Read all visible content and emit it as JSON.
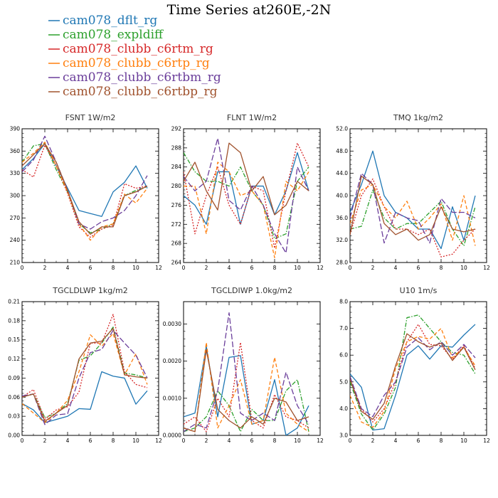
{
  "title": "Time Series at260E,-2N",
  "legend": [
    {
      "name": "cam078_dflt_rg",
      "color": "#1f77b4",
      "dash": "solid"
    },
    {
      "name": "cam078_expldiff",
      "color": "#2ca02c",
      "dash": "dashdot"
    },
    {
      "name": "cam078_clubb_c6rtm_rg",
      "color": "#d62728",
      "dash": "dot"
    },
    {
      "name": "cam078_clubb_c6rtp_rg",
      "color": "#ff7f0e",
      "dash": "dash"
    },
    {
      "name": "cam078_clubb_c6rtbm_rg",
      "color": "#6a3d9a",
      "dash": "longdash"
    },
    {
      "name": "cam078_clubb_c6rtbp_rg",
      "color": "#a0522d",
      "dash": "solid"
    }
  ],
  "chart_data": [
    {
      "type": "line",
      "title": "FSNT   1W/m2",
      "x": [
        0,
        1,
        2,
        3,
        4,
        5,
        6,
        7,
        8,
        9,
        10,
        11
      ],
      "xlim": [
        0,
        12
      ],
      "ylim": [
        210,
        390
      ],
      "yticks": [
        "210",
        "240",
        "270",
        "300",
        "330",
        "360",
        "390"
      ],
      "xticks": [
        "0",
        "2",
        "4",
        "6",
        "8",
        "10",
        "12"
      ],
      "series": [
        {
          "name": "cam078_dflt_rg",
          "values": [
            335,
            350,
            370,
            340,
            310,
            280,
            276,
            272,
            305,
            318,
            340,
            310
          ]
        },
        {
          "name": "cam078_expldiff",
          "values": [
            345,
            367,
            370,
            335,
            305,
            262,
            250,
            255,
            262,
            300,
            307,
            312
          ]
        },
        {
          "name": "cam078_clubb_c6rtm_rg",
          "values": [
            335,
            325,
            368,
            340,
            303,
            258,
            244,
            255,
            260,
            316,
            310,
            313
          ]
        },
        {
          "name": "cam078_clubb_c6rtp_rg",
          "values": [
            345,
            357,
            372,
            340,
            305,
            262,
            240,
            258,
            262,
            302,
            290,
            310
          ]
        },
        {
          "name": "cam078_clubb_c6rtbm_rg",
          "values": [
            332,
            348,
            380,
            345,
            308,
            262,
            255,
            265,
            270,
            280,
            300,
            327
          ]
        },
        {
          "name": "cam078_clubb_c6rtbp_rg",
          "values": [
            340,
            355,
            370,
            345,
            307,
            265,
            248,
            258,
            258,
            300,
            305,
            313
          ]
        }
      ]
    },
    {
      "type": "line",
      "title": "FLNT   1W/m2",
      "x": [
        0,
        1,
        2,
        3,
        4,
        5,
        6,
        7,
        8,
        9,
        10,
        11
      ],
      "xlim": [
        0,
        12
      ],
      "ylim": [
        264,
        292
      ],
      "yticks": [
        "264",
        "268",
        "272",
        "276",
        "280",
        "284",
        "288",
        "292"
      ],
      "xticks": [
        "0",
        "2",
        "4",
        "6",
        "8",
        "10",
        "12"
      ],
      "series": [
        {
          "name": "cam078_dflt_rg",
          "values": [
            278,
            276,
            272,
            283,
            283,
            272,
            280,
            280,
            274,
            279,
            287,
            279
          ]
        },
        {
          "name": "cam078_expldiff",
          "values": [
            287,
            283,
            281,
            281,
            280,
            284,
            279,
            276,
            269,
            270,
            281,
            284
          ]
        },
        {
          "name": "cam078_clubb_c6rtm_rg",
          "values": [
            283,
            270,
            278,
            284,
            276,
            272,
            280,
            279,
            267,
            279,
            289,
            284
          ]
        },
        {
          "name": "cam078_clubb_c6rtp_rg",
          "values": [
            280,
            280,
            270,
            285,
            283,
            278,
            279,
            276,
            265,
            281,
            279,
            283
          ]
        },
        {
          "name": "cam078_clubb_c6rtbm_rg",
          "values": [
            282,
            279,
            281,
            290,
            277,
            275,
            280,
            276,
            270,
            266,
            284,
            279
          ]
        },
        {
          "name": "cam078_clubb_c6rtbp_rg",
          "values": [
            281,
            285,
            279,
            275,
            289,
            287,
            279,
            282,
            274,
            276,
            281,
            279
          ]
        }
      ]
    },
    {
      "type": "line",
      "title": "TMQ   1kg/m2",
      "x": [
        0,
        1,
        2,
        3,
        4,
        5,
        6,
        7,
        8,
        9,
        10,
        11
      ],
      "xlim": [
        0,
        12
      ],
      "ylim": [
        28,
        52
      ],
      "yticks": [
        "28.0",
        "32.0",
        "36.0",
        "40.0",
        "44.0",
        "48.0",
        "52.0"
      ],
      "xticks": [
        "0",
        "2",
        "4",
        "6",
        "8",
        "10",
        "12"
      ],
      "series": [
        {
          "name": "cam078_dflt_rg",
          "values": [
            37,
            42,
            48,
            40,
            37,
            36,
            34,
            34,
            30.5,
            38,
            32,
            40
          ]
        },
        {
          "name": "cam078_expldiff",
          "values": [
            34,
            34.5,
            41,
            36,
            34,
            35,
            35,
            37,
            39,
            34,
            31,
            38
          ]
        },
        {
          "name": "cam078_clubb_c6rtm_rg",
          "values": [
            33,
            40,
            43,
            38,
            34,
            34,
            33,
            34,
            29,
            29.5,
            32,
            34
          ]
        },
        {
          "name": "cam078_clubb_c6rtp_rg",
          "values": [
            35,
            41,
            42,
            38,
            36,
            39,
            34,
            36,
            38.5,
            32,
            40,
            31
          ]
        },
        {
          "name": "cam078_clubb_c6rtbm_rg",
          "values": [
            36,
            44,
            42,
            31.5,
            37,
            36,
            35.5,
            31.5,
            39.5,
            37,
            37,
            36
          ]
        },
        {
          "name": "cam078_clubb_c6rtbp_rg",
          "values": [
            33,
            43.5,
            42,
            35,
            33,
            34,
            32,
            33,
            38,
            34,
            33.5,
            34
          ]
        }
      ]
    },
    {
      "type": "line",
      "title": "TGCLDLWP   1kg/m2",
      "x": [
        0,
        1,
        2,
        3,
        4,
        5,
        6,
        7,
        8,
        9,
        10,
        11
      ],
      "xlim": [
        0,
        12
      ],
      "ylim": [
        0,
        0.21
      ],
      "yticks": [
        "0.00",
        "0.03",
        "0.06",
        "0.09",
        "0.12",
        "0.15",
        "0.18",
        "0.21"
      ],
      "xticks": [
        "0",
        "2",
        "4",
        "6",
        "8",
        "10",
        "12"
      ],
      "series": [
        {
          "name": "cam078_dflt_rg",
          "values": [
            0.05,
            0.04,
            0.02,
            0.025,
            0.03,
            0.042,
            0.041,
            0.1,
            0.093,
            0.09,
            0.049,
            0.07
          ]
        },
        {
          "name": "cam078_expldiff",
          "values": [
            0.06,
            0.065,
            0.028,
            0.035,
            0.05,
            0.118,
            0.125,
            0.145,
            0.17,
            0.098,
            0.095,
            0.09
          ]
        },
        {
          "name": "cam078_clubb_c6rtm_rg",
          "values": [
            0.06,
            0.072,
            0.025,
            0.04,
            0.045,
            0.068,
            0.145,
            0.145,
            0.19,
            0.1,
            0.08,
            0.075
          ]
        },
        {
          "name": "cam078_clubb_c6rtp_rg",
          "values": [
            0.05,
            0.035,
            0.02,
            0.035,
            0.055,
            0.1,
            0.158,
            0.14,
            0.16,
            0.095,
            0.128,
            0.08
          ]
        },
        {
          "name": "cam078_clubb_c6rtbm_rg",
          "values": [
            0.062,
            0.065,
            0.017,
            0.032,
            0.034,
            0.09,
            0.13,
            0.135,
            0.165,
            0.145,
            0.126,
            0.09
          ]
        },
        {
          "name": "cam078_clubb_c6rtbp_rg",
          "values": [
            0.06,
            0.065,
            0.022,
            0.035,
            0.047,
            0.12,
            0.145,
            0.148,
            0.168,
            0.095,
            0.092,
            0.09
          ]
        }
      ]
    },
    {
      "type": "line",
      "title": "TGCLDIWP   1.0kg/m2",
      "x": [
        0,
        1,
        2,
        3,
        4,
        5,
        6,
        7,
        8,
        9,
        10,
        11
      ],
      "xlim": [
        0,
        12
      ],
      "ylim": [
        0,
        0.0036
      ],
      "yticks": [
        "0.0000",
        "0.0010",
        "0.0020",
        "0.0030"
      ],
      "ytick_values": [
        0,
        0.001,
        0.002,
        0.003
      ],
      "xticks": [
        "0",
        "2",
        "4",
        "6",
        "8",
        "10",
        "12"
      ],
      "series": [
        {
          "name": "cam078_dflt_rg",
          "values": [
            0.0005,
            0.0006,
            0.0024,
            0.0005,
            0.0021,
            0.00215,
            0.0003,
            0.0004,
            0.0015,
            0.0,
            0.0002,
            0.0008
          ]
        },
        {
          "name": "cam078_expldiff",
          "values": [
            0.0001,
            0.0002,
            0.0005,
            0.0012,
            0.0008,
            0.0001,
            0.0007,
            0.0004,
            0.0004,
            0.0012,
            0.0015,
            0.0001
          ]
        },
        {
          "name": "cam078_clubb_c6rtm_rg",
          "values": [
            0.0003,
            0.0005,
            0.0001,
            0.001,
            0.0005,
            0.0025,
            0.0004,
            0.0002,
            0.0011,
            0.0005,
            0.0004,
            0.0002
          ]
        },
        {
          "name": "cam078_clubb_c6rtp_rg",
          "values": [
            0.0002,
            0.0001,
            0.0025,
            0.0002,
            0.0008,
            0.0015,
            0.0003,
            0.0004,
            0.0021,
            0.0006,
            0.0003,
            0.0001
          ]
        },
        {
          "name": "cam078_clubb_c6rtbm_rg",
          "values": [
            0.0001,
            0.0003,
            0.0002,
            0.0012,
            0.0033,
            0.0006,
            0.0004,
            0.0006,
            0.0004,
            0.0017,
            0.0008,
            0.0003
          ]
        },
        {
          "name": "cam078_clubb_c6rtbp_rg",
          "values": [
            0.0002,
            0.0001,
            0.0023,
            0.0007,
            0.0004,
            0.0002,
            0.0005,
            0.0003,
            0.001,
            0.0009,
            0.0004,
            0.0005
          ]
        }
      ]
    },
    {
      "type": "line",
      "title": "U10   1m/s",
      "x": [
        0,
        1,
        2,
        3,
        4,
        5,
        6,
        7,
        8,
        9,
        10,
        11
      ],
      "xlim": [
        0,
        12
      ],
      "ylim": [
        3,
        8
      ],
      "yticks": [
        "3.0",
        "4.0",
        "5.0",
        "6.0",
        "7.0",
        "8.0"
      ],
      "xticks": [
        "0",
        "2",
        "4",
        "6",
        "8",
        "10",
        "12"
      ],
      "series": [
        {
          "name": "cam078_dflt_rg",
          "values": [
            5.3,
            4.8,
            3.2,
            3.25,
            4.5,
            6.0,
            6.35,
            5.85,
            6.35,
            6.3,
            6.75,
            7.15
          ]
        },
        {
          "name": "cam078_expldiff",
          "values": [
            5.0,
            3.8,
            3.2,
            3.8,
            4.8,
            7.4,
            7.5,
            7.0,
            6.5,
            6.1,
            6.0,
            5.3
          ]
        },
        {
          "name": "cam078_clubb_c6rtm_rg",
          "values": [
            5.1,
            4.0,
            3.5,
            4.0,
            5.0,
            6.5,
            7.15,
            6.4,
            6.35,
            5.85,
            6.35,
            5.5
          ]
        },
        {
          "name": "cam078_clubb_c6rtp_rg",
          "values": [
            4.5,
            3.5,
            3.3,
            3.9,
            5.5,
            6.5,
            6.7,
            6.6,
            7.0,
            5.9,
            6.3,
            5.6
          ]
        },
        {
          "name": "cam078_clubb_c6rtbm_rg",
          "values": [
            5.2,
            4.0,
            3.7,
            4.5,
            5.0,
            6.3,
            6.65,
            6.2,
            6.5,
            6.0,
            6.4,
            5.9
          ]
        },
        {
          "name": "cam078_clubb_c6rtbp_rg",
          "values": [
            5.1,
            3.9,
            3.6,
            4.2,
            5.6,
            6.8,
            6.5,
            6.3,
            6.45,
            5.8,
            6.3,
            5.45
          ]
        }
      ]
    }
  ]
}
